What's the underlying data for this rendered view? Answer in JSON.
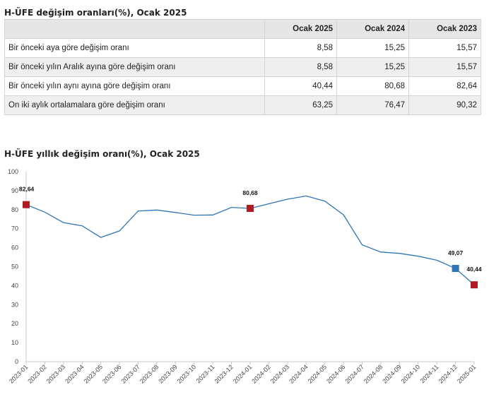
{
  "table": {
    "title": "H-ÜFE değişim oranları(%), Ocak 2025",
    "headers": [
      "",
      "Ocak 2025",
      "Ocak 2024",
      "Ocak 2023"
    ],
    "rows": [
      {
        "label": "Bir önceki aya göre değişim oranı",
        "values": [
          "8,58",
          "15,25",
          "15,57"
        ]
      },
      {
        "label": "Bir önceki yılın Aralık ayına göre değişim oranı",
        "values": [
          "8,58",
          "15,25",
          "15,57"
        ]
      },
      {
        "label": "Bir önceki yılın aynı ayına göre değişim oranı",
        "values": [
          "40,44",
          "80,68",
          "82,64"
        ]
      },
      {
        "label": "On iki aylık ortalamalara göre değişim oranı",
        "values": [
          "63,25",
          "76,47",
          "90,32"
        ]
      }
    ]
  },
  "chart_data": {
    "type": "line",
    "title": "H-ÜFE yıllık değişim oranı(%), Ocak 2025",
    "xlabel": "",
    "ylabel": "",
    "ylim": [
      0,
      100
    ],
    "yticks": [
      0,
      10,
      20,
      30,
      40,
      50,
      60,
      70,
      80,
      90,
      100
    ],
    "x": [
      "2023-01",
      "2023-02",
      "2023-03",
      "2023-04",
      "2023-05",
      "2023-06",
      "2023-07",
      "2023-08",
      "2023-09",
      "2023-10",
      "2023-11",
      "2023-12",
      "2024-01",
      "2024-02",
      "2024-03",
      "2024-04",
      "2024-05",
      "2024-06",
      "2024-07",
      "2024-08",
      "2024-09",
      "2024-10",
      "2024-11",
      "2024-12",
      "2025-01"
    ],
    "y": [
      82.64,
      78.7,
      73.2,
      71.5,
      65.4,
      68.8,
      79.3,
      79.8,
      78.5,
      77.1,
      77.2,
      81.2,
      80.68,
      83.1,
      85.5,
      87.2,
      84.5,
      77.3,
      61.5,
      57.7,
      57.0,
      55.5,
      53.4,
      49.07,
      40.44
    ],
    "line_color": "#2e75b6",
    "highlights": [
      {
        "x": "2023-01",
        "value": 82.64,
        "label": "82,64",
        "color": "#b21a22"
      },
      {
        "x": "2024-01",
        "value": 80.68,
        "label": "80,68",
        "color": "#b21a22"
      },
      {
        "x": "2024-12",
        "value": 49.07,
        "label": "49,07",
        "color": "#2e75b6"
      },
      {
        "x": "2025-01",
        "value": 40.44,
        "label": "40,44",
        "color": "#b21a22"
      }
    ],
    "grid": false
  }
}
